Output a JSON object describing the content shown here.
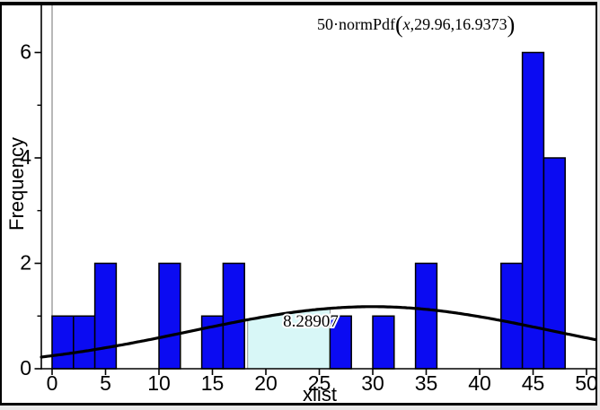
{
  "frame": {
    "outer_background": "#e9e9e9",
    "border_color": "#000000",
    "plot_background": "#ffffff"
  },
  "chart_data": {
    "type": "histogram",
    "title": "",
    "xlabel": "xlist",
    "ylabel": "Frequency",
    "x_ticks": [
      0,
      5,
      10,
      15,
      20,
      25,
      30,
      35,
      40,
      45,
      50
    ],
    "y_ticks_labeled": [
      0,
      2,
      4,
      6
    ],
    "y_ticks_minor": [
      1,
      3,
      5
    ],
    "xlim": [
      -1.0,
      50.8
    ],
    "ylim": [
      0,
      6.89
    ],
    "grid": "off",
    "bin_width": 2,
    "bins": [
      {
        "start": 0,
        "end": 2,
        "freq": 1
      },
      {
        "start": 2,
        "end": 4,
        "freq": 1
      },
      {
        "start": 4,
        "end": 6,
        "freq": 2
      },
      {
        "start": 10,
        "end": 12,
        "freq": 2
      },
      {
        "start": 14,
        "end": 16,
        "freq": 1
      },
      {
        "start": 16,
        "end": 18,
        "freq": 2
      },
      {
        "start": 26,
        "end": 28,
        "freq": 1
      },
      {
        "start": 30,
        "end": 32,
        "freq": 1
      },
      {
        "start": 34,
        "end": 36,
        "freq": 2
      },
      {
        "start": 42,
        "end": 44,
        "freq": 2
      },
      {
        "start": 44,
        "end": 46,
        "freq": 6
      },
      {
        "start": 46,
        "end": 48,
        "freq": 4
      }
    ],
    "bar_fill": "#0b0bf2",
    "bar_border": "#000000",
    "zero_line_color": "#999999",
    "curve": {
      "equation_label": "50·normPdf(x,29.96,16.9373)",
      "equation_parts": {
        "prefix": "50·normPdf",
        "open_paren": "(",
        "variable": "x",
        "args": ",29.96,16.9373",
        "close_paren": ")"
      },
      "scale": 50,
      "mean": 29.96,
      "sd": 16.9373,
      "color": "#000000"
    },
    "shaded_region": {
      "x_from": 18.3,
      "x_to": 26,
      "area_label": "8.28907",
      "fill_color": "#d8f7f7",
      "edge_color": "#777777"
    }
  }
}
